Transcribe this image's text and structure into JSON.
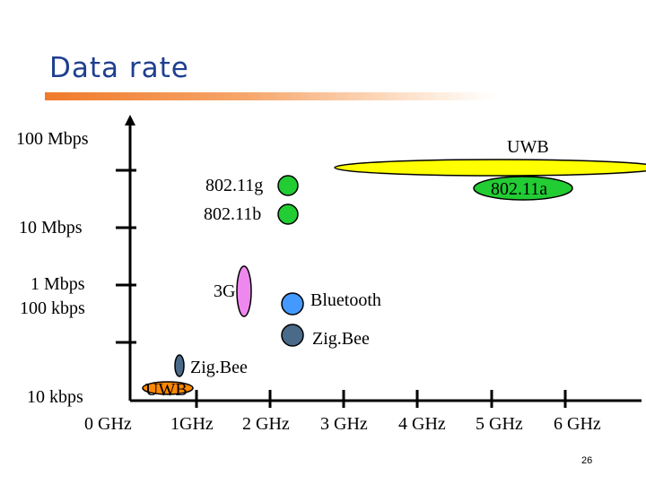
{
  "slide": {
    "title": "Data rate",
    "page_number": "26"
  },
  "y_axis_labels": {
    "l100mbps": "100 Mbps",
    "l10mbps": "10 Mbps",
    "l1mbps": "1 Mbps",
    "l100kbps": "100 kbps",
    "l10kbps": "10 kbps"
  },
  "x_axis_labels": [
    "0 GHz",
    "1GHz",
    "2 GHz",
    "3 GHz",
    "4 GHz",
    "5 GHz",
    "6 GHz"
  ],
  "technologies": {
    "uwb_high": "UWB",
    "wifi_g": "802.11g",
    "wifi_b": "802.11b",
    "wifi_a": "802.11a",
    "g3": "3G",
    "bluetooth": "Bluetooth",
    "zigbee_24": "Zig.Bee",
    "zigbee_low": "Zig.Bee",
    "uwb_low": "UWB"
  },
  "colors": {
    "title": "#1f3f8f",
    "title_bar": "#f07a2a",
    "uwb": "#ffff00",
    "wifi": "#22cc33",
    "g3": "#ee88ee",
    "bluetooth": "#4499ff",
    "zigbee": "#4a6a8a",
    "uwb_low": "#ff8800"
  }
}
